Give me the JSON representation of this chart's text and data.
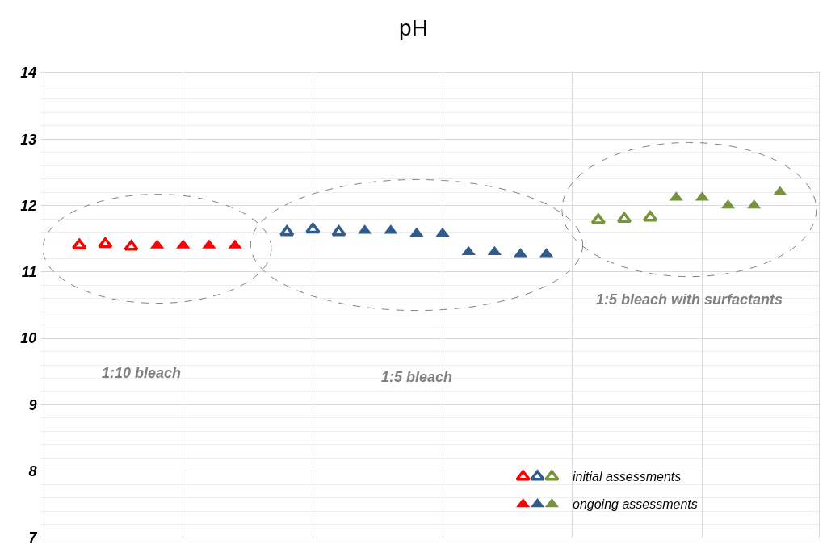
{
  "chart_data": {
    "type": "scatter",
    "title": "pH",
    "categories": [
      null,
      null,
      null,
      null,
      null,
      null,
      null,
      null,
      null,
      null,
      null,
      null,
      null,
      null,
      null,
      null,
      null,
      null,
      null,
      null,
      null,
      null,
      null,
      null,
      null,
      null,
      null,
      null,
      null,
      null
    ],
    "ylim": [
      7,
      14
    ],
    "yticks": [
      7,
      8,
      9,
      10,
      11,
      12,
      13,
      14
    ],
    "grid": true,
    "tick_labels": "y",
    "legend": "bottom right",
    "series": [
      {
        "color": "#ff0000",
        "marker": "triangle-open",
        "values": [
          null,
          11.4,
          11.42,
          11.38,
          null,
          null,
          null,
          null,
          null,
          null,
          null,
          null,
          null,
          null,
          null,
          null,
          null,
          null,
          null,
          null,
          null,
          null,
          null,
          null,
          null,
          null,
          null,
          null,
          null,
          null
        ]
      },
      {
        "color": "#ff0000",
        "marker": "triangle",
        "values": [
          null,
          null,
          null,
          null,
          11.4,
          11.4,
          11.4,
          11.4,
          null,
          null,
          null,
          null,
          null,
          null,
          null,
          null,
          null,
          null,
          null,
          null,
          null,
          null,
          null,
          null,
          null,
          null,
          null,
          null,
          null,
          null
        ]
      },
      {
        "color": "#2e5c8f",
        "marker": "triangle-open",
        "values": [
          null,
          null,
          null,
          null,
          null,
          null,
          null,
          null,
          null,
          11.6,
          11.64,
          11.6,
          null,
          null,
          null,
          null,
          null,
          null,
          null,
          null,
          null,
          null,
          null,
          null,
          null,
          null,
          null,
          null,
          null,
          null
        ]
      },
      {
        "color": "#2e5c8f",
        "marker": "triangle",
        "values": [
          null,
          null,
          null,
          null,
          null,
          null,
          null,
          null,
          null,
          null,
          null,
          null,
          11.62,
          11.62,
          11.58,
          11.58,
          11.3,
          11.3,
          11.27,
          11.27,
          null,
          null,
          null,
          null,
          null,
          null,
          null,
          null,
          null,
          null
        ]
      },
      {
        "name": "initial assessments",
        "color": "#77933c",
        "marker": "triangle-open",
        "values": [
          null,
          null,
          null,
          null,
          null,
          null,
          null,
          null,
          null,
          null,
          null,
          null,
          null,
          null,
          null,
          null,
          null,
          null,
          null,
          null,
          null,
          11.78,
          11.8,
          11.82,
          null,
          null,
          null,
          null,
          null,
          null
        ]
      },
      {
        "name": "ongoing assessments",
        "color": "#77933c",
        "marker": "triangle",
        "values": [
          null,
          null,
          null,
          null,
          null,
          null,
          null,
          null,
          null,
          null,
          null,
          null,
          null,
          null,
          null,
          null,
          null,
          null,
          null,
          null,
          null,
          null,
          null,
          null,
          12.12,
          12.12,
          12.0,
          12.0,
          12.2,
          null
        ]
      }
    ],
    "annotations": [
      "1:10 bleach",
      "1:5 bleach",
      "1:5 bleach with surfactants"
    ]
  }
}
